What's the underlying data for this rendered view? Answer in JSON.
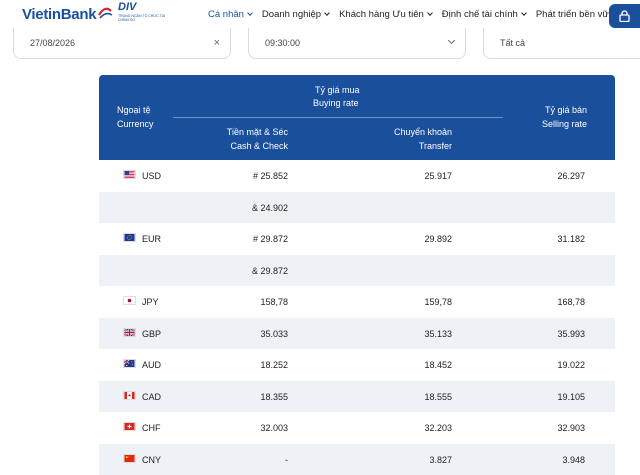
{
  "header": {
    "logo_text": "VietinBank",
    "badge_title": "DIV",
    "badge_sub": "TRUNG NGÂN TỔ CHỨC TÀI CHÍNH SỐ",
    "nav": [
      {
        "label": "Cá nhân"
      },
      {
        "label": "Doanh nghiệp"
      },
      {
        "label": "Khách hàng Ưu tiên"
      },
      {
        "label": "Định chế tài chính"
      },
      {
        "label": "Phát triển bền vững"
      }
    ]
  },
  "filters": {
    "date": "27/08/2026",
    "time": "09:30:00",
    "currency": "Tất cả"
  },
  "table": {
    "col_currency_vi": "Ngoại tệ",
    "col_currency_en": "Currency",
    "col_buy_vi": "Tỷ giá mua",
    "col_buy_en": "Buying rate",
    "col_cash_vi": "Tiền mặt & Séc",
    "col_cash_en": "Cash & Check",
    "col_transfer_vi": "Chuyển khoản",
    "col_transfer_en": "Transfer",
    "col_sell_vi": "Tỷ giá bán",
    "col_sell_en": "Selling rate",
    "rows": [
      {
        "code": "USD",
        "cash": "# 25.852",
        "transfer": "25.917",
        "sell": "26.297"
      },
      {
        "code": "",
        "cash": "& 24.902",
        "transfer": "",
        "sell": ""
      },
      {
        "code": "EUR",
        "cash": "# 29.872",
        "transfer": "29.892",
        "sell": "31.182"
      },
      {
        "code": "",
        "cash": "& 29.872",
        "transfer": "",
        "sell": ""
      },
      {
        "code": "JPY",
        "cash": "158,78",
        "transfer": "159,78",
        "sell": "168,78"
      },
      {
        "code": "GBP",
        "cash": "35.033",
        "transfer": "35.133",
        "sell": "35.993"
      },
      {
        "code": "AUD",
        "cash": "18.252",
        "transfer": "18.452",
        "sell": "19.022"
      },
      {
        "code": "CAD",
        "cash": "18.355",
        "transfer": "18.555",
        "sell": "19.105"
      },
      {
        "code": "CHF",
        "cash": "32.003",
        "transfer": "32.203",
        "sell": "32.903"
      },
      {
        "code": "CNY",
        "cash": "-",
        "transfer": "3.827",
        "sell": "3.948"
      }
    ]
  }
}
